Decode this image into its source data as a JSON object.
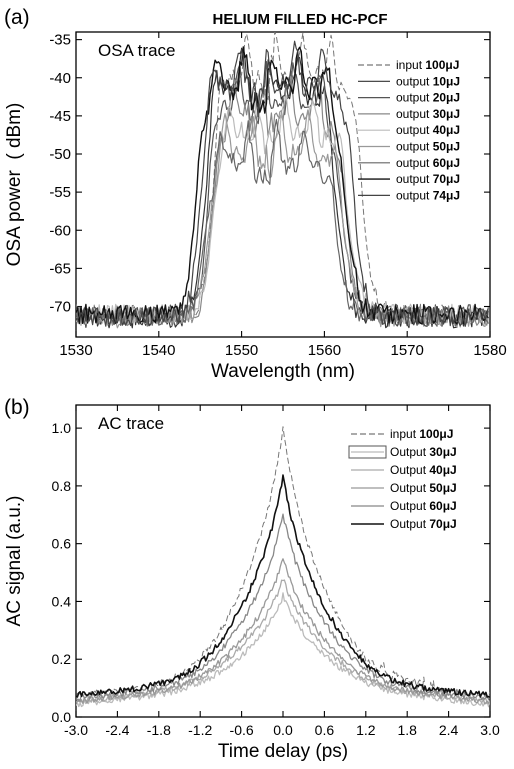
{
  "figure": {
    "title": "HELIUM FILLED HC-PCF"
  },
  "chart_data": [
    {
      "panel_label": "(a)",
      "type": "line",
      "annotation": "OSA trace",
      "xlabel": "Wavelength (nm)",
      "ylabel": "OSA power  ( dBm)",
      "xlim": [
        1530,
        1580
      ],
      "ylim": [
        -74,
        -34
      ],
      "xticks": [
        1530,
        1540,
        1550,
        1560,
        1570,
        1580
      ],
      "yticks": [
        -35,
        -40,
        -45,
        -50,
        -55,
        -60,
        -65,
        -70
      ],
      "legend": "top-right",
      "grid": false,
      "series": [
        {
          "label_plain": "input ",
          "label_bold": "100μJ",
          "color": "#777777",
          "dash": "6,3",
          "width": 1.0,
          "peak": -35.5,
          "rise": 1546.5,
          "fall": 1564.5,
          "floor": -71.0
        },
        {
          "label_plain": "output ",
          "label_bold": "10μJ",
          "color": "#333333",
          "dash": "",
          "width": 1.2,
          "peak": -37.5,
          "rise": 1545.5,
          "fall": 1561.5,
          "floor": -71.5
        },
        {
          "label_plain": "output ",
          "label_bold": "20μJ",
          "color": "#555555",
          "dash": "",
          "width": 1.2,
          "peak": -39.0,
          "rise": 1546.0,
          "fall": 1562.0,
          "floor": -71.0
        },
        {
          "label_plain": "output ",
          "label_bold": "30μJ",
          "color": "#888888",
          "dash": "",
          "width": 1.2,
          "peak": -40.5,
          "rise": 1546.5,
          "fall": 1562.5,
          "floor": -71.2
        },
        {
          "label_plain": "output ",
          "label_bold": "40μJ",
          "color": "#bbbbbb",
          "dash": "",
          "width": 1.2,
          "peak": -43.0,
          "rise": 1546.5,
          "fall": 1563.0,
          "floor": -71.0
        },
        {
          "label_plain": "output ",
          "label_bold": "50μJ",
          "color": "#999999",
          "dash": "",
          "width": 1.2,
          "peak": -45.5,
          "rise": 1546.0,
          "fall": 1562.5,
          "floor": -71.5
        },
        {
          "label_plain": "output ",
          "label_bold": "60μJ",
          "color": "#666666",
          "dash": "",
          "width": 1.2,
          "peak": -47.0,
          "rise": 1545.5,
          "fall": 1561.5,
          "floor": -71.3
        },
        {
          "label_plain": "output ",
          "label_bold": "70μJ",
          "color": "#111111",
          "dash": "",
          "width": 1.4,
          "peak": -37.0,
          "rise": 1544.5,
          "fall": 1562.5,
          "floor": -71.0
        },
        {
          "label_plain": "output ",
          "label_bold": "74μJ",
          "color": "#444444",
          "dash": "",
          "width": 1.2,
          "peak": -36.5,
          "rise": 1545.0,
          "fall": 1563.5,
          "floor": -71.4
        }
      ]
    },
    {
      "panel_label": "(b)",
      "type": "line",
      "annotation": "AC trace",
      "xlabel": "Time delay (ps)",
      "ylabel": "AC signal (a.u.)",
      "xlim": [
        -3.0,
        3.0
      ],
      "ylim": [
        0.0,
        1.08
      ],
      "xticks": [
        "-3.0",
        "-2.4",
        "-1.8",
        "-1.2",
        "-0.6",
        "0.0",
        "0.6",
        "1.2",
        "1.8",
        "2.4",
        "3.0"
      ],
      "yticks": [
        "0.0",
        "0.2",
        "0.4",
        "0.6",
        "0.8",
        "1.0"
      ],
      "legend": "top-right",
      "grid": false,
      "series": [
        {
          "label_plain": "input ",
          "label_bold": "100μJ",
          "color": "#777777",
          "dash": "6,3",
          "width": 1.0,
          "peak": 1.0,
          "base": 0.07
        },
        {
          "label_plain": "Output ",
          "label_bold": "30μJ",
          "color": "#bbbbbb",
          "dash": "",
          "width": 1.3,
          "peak": 0.42,
          "base": 0.04
        },
        {
          "label_plain": "Output ",
          "label_bold": "40μJ",
          "color": "#aaaaaa",
          "dash": "",
          "width": 1.3,
          "peak": 0.48,
          "base": 0.05
        },
        {
          "label_plain": "Output ",
          "label_bold": "50μJ",
          "color": "#999999",
          "dash": "",
          "width": 1.3,
          "peak": 0.55,
          "base": 0.05
        },
        {
          "label_plain": "Output ",
          "label_bold": "60μJ",
          "color": "#888888",
          "dash": "",
          "width": 1.3,
          "peak": 0.7,
          "base": 0.06
        },
        {
          "label_plain": "Output ",
          "label_bold": "70μJ",
          "color": "#111111",
          "dash": "",
          "width": 1.6,
          "peak": 0.83,
          "base": 0.07
        }
      ]
    }
  ]
}
